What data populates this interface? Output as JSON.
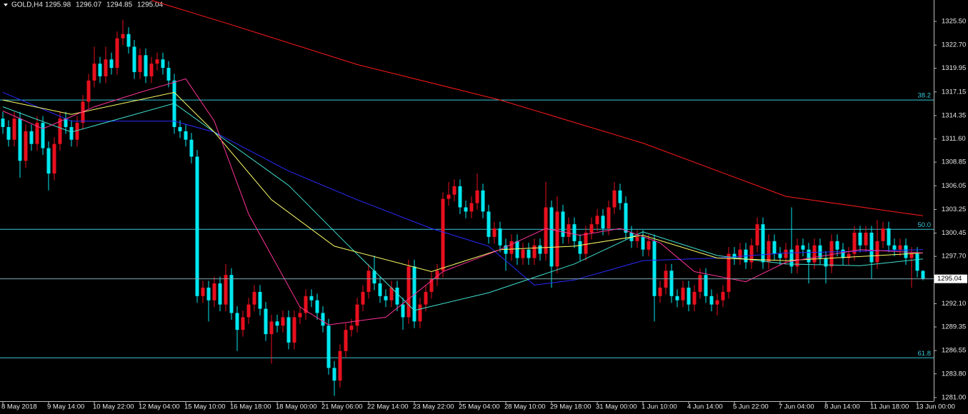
{
  "chart_data": {
    "type": "candlestick",
    "symbol": "GOLD,H4",
    "up_color": "#e8101e",
    "down_color": "#00e8f0",
    "open": [
      1314.0,
      1313.0,
      1311.5,
      1314.0,
      1309.0,
      1312.5,
      1311.0,
      1313.5,
      1310.5,
      1307.5,
      1311.0,
      1314.0,
      1313.0,
      1311.5,
      1313.5,
      1316.0,
      1318.5,
      1320.5,
      1319.0,
      1321.0,
      1320.0,
      1323.5,
      1324.0,
      1322.5,
      1319.5,
      1321.5,
      1319.0,
      1320.5,
      1321.0,
      1320.0,
      1318.5,
      1313.0,
      1312.5,
      1311.5,
      1309.5,
      1293.0,
      1294.0,
      1292.5,
      1294.5,
      1292.0,
      1295.5,
      1291.0,
      1289.0,
      1290.5,
      1292.0,
      1293.5,
      1291.5,
      1288.5,
      1290.0,
      1289.5,
      1290.5,
      1287.5,
      1290.5,
      1291.0,
      1293.0,
      1292.5,
      1291.0,
      1289.5,
      1284.5,
      1283.0,
      1286.5,
      1289.0,
      1289.5,
      1292.0,
      1293.5,
      1296.0,
      1294.5,
      1293.0,
      1292.5,
      1294.0,
      1292.0,
      1290.5,
      1296.5,
      1290.0,
      1292.0,
      1293.5,
      1295.0,
      1296.0,
      1304.5,
      1305.0,
      1306.0,
      1303.5,
      1303.0,
      1304.0,
      1305.5,
      1303.0,
      1300.0,
      1301.0,
      1299.0,
      1298.0,
      1299.5,
      1297.5,
      1298.5,
      1297.5,
      1299.0,
      1298.0,
      1303.5,
      1296.5,
      1303.0,
      1300.0,
      1301.5,
      1299.5,
      1298.0,
      1300.5,
      1301.5,
      1302.5,
      1301.0,
      1303.5,
      1305.5,
      1304.0,
      1300.5,
      1299.5,
      1300.0,
      1298.5,
      1299.5,
      1293.0,
      1294.0,
      1296.0,
      1293.0,
      1292.5,
      1294.0,
      1292.0,
      1293.5,
      1295.5,
      1293.0,
      1292.0,
      1292.5,
      1293.5,
      1298.0,
      1297.5,
      1298.5,
      1297.0,
      1299.0,
      1301.5,
      1297.0,
      1299.5,
      1298.0,
      1297.5,
      1298.5,
      1296.5,
      1299.0,
      1298.5,
      1297.0,
      1299.0,
      1297.5,
      1296.5,
      1299.5,
      1298.5,
      1297.5,
      1298.0,
      1300.5,
      1299.0,
      1300.5,
      1297.0,
      1299.5,
      1301.0,
      1299.0,
      1298.5,
      1299.0,
      1297.5,
      1298.0,
      1295.98
    ],
    "high": [
      1314.8,
      1313.8,
      1314.8,
      1314.8,
      1313.3,
      1313.3,
      1314.3,
      1314.3,
      1311.3,
      1311.8,
      1314.8,
      1314.8,
      1313.8,
      1314.3,
      1316.8,
      1319.3,
      1322.5,
      1321.3,
      1322.5,
      1321.8,
      1324.3,
      1325.7,
      1324.8,
      1323.3,
      1322.3,
      1322.3,
      1321.3,
      1321.8,
      1321.8,
      1320.8,
      1319.3,
      1313.8,
      1313.3,
      1312.3,
      1310.3,
      1294.8,
      1294.8,
      1295.3,
      1295.3,
      1296.8,
      1296.3,
      1291.8,
      1291.3,
      1292.8,
      1294.3,
      1294.3,
      1292.3,
      1290.8,
      1290.8,
      1291.3,
      1291.3,
      1291.3,
      1291.8,
      1293.8,
      1293.8,
      1293.3,
      1291.8,
      1290.3,
      1285.3,
      1287.3,
      1289.8,
      1290.3,
      1292.8,
      1294.3,
      1296.8,
      1297.8,
      1295.3,
      1293.8,
      1294.8,
      1294.8,
      1292.8,
      1297.3,
      1297.3,
      1292.8,
      1294.3,
      1295.8,
      1296.8,
      1305.3,
      1306.5,
      1306.8,
      1306.8,
      1304.3,
      1304.8,
      1307.5,
      1306.3,
      1303.8,
      1301.8,
      1301.8,
      1299.8,
      1300.3,
      1300.3,
      1299.3,
      1299.3,
      1299.8,
      1299.8,
      1306.5,
      1304.3,
      1304.8,
      1303.8,
      1302.3,
      1302.3,
      1300.3,
      1301.3,
      1302.3,
      1303.3,
      1303.3,
      1304.3,
      1306.5,
      1306.3,
      1304.8,
      1301.3,
      1300.8,
      1300.8,
      1300.3,
      1300.3,
      1294.8,
      1296.8,
      1296.8,
      1293.8,
      1294.8,
      1294.8,
      1294.3,
      1296.3,
      1296.3,
      1293.8,
      1293.3,
      1294.3,
      1298.8,
      1298.8,
      1299.3,
      1299.3,
      1299.8,
      1302.3,
      1302.3,
      1300.3,
      1300.3,
      1298.8,
      1299.3,
      1303.5,
      1299.8,
      1299.8,
      1299.3,
      1299.8,
      1299.8,
      1298.3,
      1300.3,
      1300.3,
      1299.3,
      1298.8,
      1301.3,
      1301.3,
      1301.3,
      1301.3,
      1302.0,
      1301.8,
      1301.8,
      1299.8,
      1299.8,
      1299.8,
      1298.8,
      1298.8,
      1296.07
    ],
    "low": [
      1312.2,
      1310.7,
      1310.7,
      1307.0,
      1308.2,
      1310.2,
      1310.2,
      1309.7,
      1305.5,
      1306.7,
      1310.2,
      1312.2,
      1310.7,
      1310.7,
      1312.7,
      1315.2,
      1317.7,
      1318.2,
      1318.2,
      1319.2,
      1319.2,
      1322.7,
      1321.7,
      1318.7,
      1318.7,
      1318.2,
      1318.2,
      1319.7,
      1319.2,
      1317.7,
      1312.2,
      1311.7,
      1310.7,
      1308.7,
      1292.2,
      1292.2,
      1290.0,
      1291.7,
      1291.2,
      1291.2,
      1290.2,
      1286.5,
      1288.2,
      1289.7,
      1291.2,
      1290.7,
      1287.7,
      1285.0,
      1288.7,
      1288.7,
      1286.7,
      1286.7,
      1289.7,
      1290.2,
      1291.7,
      1290.2,
      1288.7,
      1283.7,
      1281.2,
      1282.2,
      1285.7,
      1288.2,
      1288.7,
      1291.2,
      1292.7,
      1293.7,
      1292.2,
      1291.7,
      1291.7,
      1291.2,
      1289.0,
      1289.7,
      1289.2,
      1289.2,
      1291.2,
      1292.7,
      1294.2,
      1295.2,
      1303.7,
      1304.2,
      1302.7,
      1302.2,
      1302.2,
      1303.2,
      1302.2,
      1299.2,
      1299.2,
      1298.2,
      1296.0,
      1297.2,
      1296.7,
      1296.7,
      1296.7,
      1296.7,
      1297.2,
      1297.2,
      1294.0,
      1295.7,
      1299.2,
      1299.2,
      1298.7,
      1297.2,
      1297.2,
      1299.7,
      1300.7,
      1300.2,
      1300.2,
      1302.7,
      1303.2,
      1299.7,
      1298.7,
      1298.7,
      1297.7,
      1297.7,
      1290.0,
      1292.2,
      1293.2,
      1292.2,
      1291.7,
      1291.7,
      1291.2,
      1291.2,
      1292.7,
      1292.2,
      1291.2,
      1290.7,
      1291.7,
      1292.7,
      1296.7,
      1296.7,
      1296.2,
      1296.2,
      1298.2,
      1296.2,
      1296.2,
      1297.2,
      1296.7,
      1296.7,
      1295.7,
      1295.7,
      1297.7,
      1294.5,
      1296.2,
      1296.7,
      1294.5,
      1295.7,
      1297.7,
      1296.7,
      1296.7,
      1297.2,
      1298.2,
      1298.2,
      1295.0,
      1296.2,
      1298.7,
      1298.2,
      1297.7,
      1297.7,
      1296.7,
      1294.0,
      1295.2,
      1294.85
    ],
    "close": [
      1313.0,
      1311.5,
      1314.0,
      1309.0,
      1312.5,
      1311.0,
      1313.5,
      1310.5,
      1307.5,
      1311.0,
      1314.0,
      1313.0,
      1311.5,
      1313.5,
      1316.0,
      1318.5,
      1320.5,
      1319.0,
      1321.0,
      1320.0,
      1323.5,
      1324.0,
      1322.5,
      1319.5,
      1321.5,
      1319.0,
      1320.5,
      1321.0,
      1320.0,
      1318.5,
      1313.0,
      1312.5,
      1311.5,
      1309.5,
      1293.0,
      1294.0,
      1292.5,
      1294.5,
      1292.0,
      1295.5,
      1291.0,
      1289.0,
      1290.5,
      1292.0,
      1293.5,
      1291.5,
      1288.5,
      1290.0,
      1289.5,
      1290.5,
      1287.5,
      1290.5,
      1291.0,
      1293.0,
      1292.5,
      1291.0,
      1289.5,
      1284.5,
      1283.0,
      1286.5,
      1289.0,
      1289.5,
      1292.0,
      1293.5,
      1296.0,
      1294.5,
      1293.0,
      1292.5,
      1294.0,
      1292.0,
      1290.5,
      1296.5,
      1290.0,
      1292.0,
      1293.5,
      1295.0,
      1296.0,
      1304.5,
      1305.0,
      1306.0,
      1303.5,
      1303.0,
      1304.0,
      1305.5,
      1303.0,
      1300.0,
      1301.0,
      1299.0,
      1298.0,
      1299.5,
      1297.5,
      1298.5,
      1297.5,
      1299.0,
      1298.0,
      1303.5,
      1296.5,
      1303.0,
      1300.0,
      1301.5,
      1299.5,
      1298.0,
      1300.5,
      1301.5,
      1302.5,
      1301.0,
      1303.5,
      1305.5,
      1304.0,
      1300.5,
      1299.5,
      1300.0,
      1298.5,
      1299.5,
      1293.0,
      1294.0,
      1296.0,
      1293.0,
      1292.5,
      1294.0,
      1292.0,
      1293.5,
      1295.5,
      1293.0,
      1292.0,
      1292.5,
      1293.5,
      1298.0,
      1297.5,
      1298.5,
      1297.0,
      1299.0,
      1301.5,
      1297.0,
      1299.5,
      1298.0,
      1297.5,
      1298.5,
      1296.5,
      1299.0,
      1298.5,
      1297.0,
      1299.0,
      1297.5,
      1296.5,
      1299.5,
      1298.5,
      1297.5,
      1298.0,
      1300.5,
      1299.0,
      1300.5,
      1297.0,
      1299.5,
      1301.0,
      1299.0,
      1298.5,
      1299.0,
      1297.5,
      1298.0,
      1296.0,
      1295.04
    ],
    "series": [
      {
        "color": "#ff1a1a",
        "x": [
          26,
          40,
          62,
          87,
          112,
          137,
          161
        ],
        "values": [
          1328.0,
          1325.1,
          1320.4,
          1316.2,
          1311.1,
          1304.8,
          1302.5
        ]
      },
      {
        "color": "#2a2aff",
        "x": [
          0,
          12,
          30,
          37,
          50,
          62,
          75,
          85,
          93,
          100,
          112,
          125,
          137,
          161
        ],
        "values": [
          1317.1,
          1313.7,
          1313.7,
          1312.4,
          1307.8,
          1304.4,
          1301.0,
          1298.9,
          1294.3,
          1294.9,
          1297.2,
          1297.5,
          1298.1,
          1298.5
        ]
      },
      {
        "color": "#40e0d0",
        "x": [
          0,
          12,
          30,
          37,
          50,
          60,
          72,
          85,
          100,
          112,
          125,
          137,
          150,
          161
        ],
        "values": [
          1315.4,
          1312.4,
          1315.8,
          1312.4,
          1306.1,
          1299.3,
          1291.3,
          1293.4,
          1296.8,
          1300.6,
          1297.8,
          1296.8,
          1296.6,
          1297.4
        ]
      },
      {
        "color": "#ffff66",
        "x": [
          0,
          12,
          30,
          37,
          47,
          58,
          75,
          87,
          100,
          112,
          125,
          137,
          161
        ],
        "values": [
          1316.2,
          1314.5,
          1317.1,
          1312.4,
          1304.4,
          1298.9,
          1295.9,
          1298.5,
          1298.9,
          1300.2,
          1297.5,
          1297.2,
          1298.1
        ]
      },
      {
        "color": "#ff3399",
        "x": [
          0,
          7,
          16,
          24,
          32,
          37,
          43,
          52,
          57,
          67,
          77,
          87,
          95,
          101,
          108,
          115,
          121,
          130,
          137,
          150,
          161
        ],
        "values": [
          1314.9,
          1312.8,
          1315.4,
          1317.1,
          1318.7,
          1313.7,
          1302.7,
          1291.7,
          1289.6,
          1290.5,
          1295.9,
          1298.5,
          1301.0,
          1300.2,
          1301.0,
          1299.3,
          1295.9,
          1294.7,
          1297.0,
          1298.5,
          1298.1
        ]
      }
    ],
    "levels": [
      {
        "label": "38.2",
        "value": 1316.2
      },
      {
        "label": "50.0",
        "value": 1300.9
      },
      {
        "label": "61.8",
        "value": 1285.7
      }
    ],
    "ylim": [
      1280.57,
      1328.03
    ],
    "yticks": [
      {
        "value": 1325.5,
        "label": "1325.50"
      },
      {
        "value": 1322.7,
        "label": "1322.70"
      },
      {
        "value": 1319.95,
        "label": "1319.95"
      },
      {
        "value": 1317.15,
        "label": "1317.15"
      },
      {
        "value": 1314.35,
        "label": "1314.35"
      },
      {
        "value": 1311.6,
        "label": "1311.60"
      },
      {
        "value": 1308.85,
        "label": "1308.85"
      },
      {
        "value": 1306.05,
        "label": "1306.05"
      },
      {
        "value": 1303.25,
        "label": "1303.25"
      },
      {
        "value": 1300.45,
        "label": "1300.45"
      },
      {
        "value": 1297.7,
        "label": "1297.70"
      },
      {
        "value": 1292.1,
        "label": "1292.10"
      },
      {
        "value": 1289.35,
        "label": "1289.35"
      },
      {
        "value": 1286.55,
        "label": "1286.55"
      },
      {
        "value": 1283.8,
        "label": "1283.80"
      },
      {
        "value": 1281.0,
        "label": "1281.00"
      }
    ],
    "xticks": [
      {
        "value": 0,
        "label": "8 May 2018"
      },
      {
        "value": 8,
        "label": "9 May 14:00"
      },
      {
        "value": 16,
        "label": "10 May 22:00"
      },
      {
        "value": 24,
        "label": "12 May 04:00"
      },
      {
        "value": 32,
        "label": "15 May 10:00"
      },
      {
        "value": 40,
        "label": "16 May 18:00"
      },
      {
        "value": 48,
        "label": "18 May 00:00"
      },
      {
        "value": 56,
        "label": "21 May 06:00"
      },
      {
        "value": 64,
        "label": "22 May 14:00"
      },
      {
        "value": 72,
        "label": "23 May 22:00"
      },
      {
        "value": 80,
        "label": "25 May 04:00"
      },
      {
        "value": 88,
        "label": "28 May 10:00"
      },
      {
        "value": 96,
        "label": "29 May 18:00"
      },
      {
        "value": 104,
        "label": "31 May 00:00"
      },
      {
        "value": 112,
        "label": "1 Jun 10:00"
      },
      {
        "value": 120,
        "label": "4 Jun 14:00"
      },
      {
        "value": 128,
        "label": "5 Jun 22:00"
      },
      {
        "value": 136,
        "label": "7 Jun 04:00"
      },
      {
        "value": 144,
        "label": "8 Jun 14:00"
      },
      {
        "value": 152,
        "label": "11 Jun 18:00"
      },
      {
        "value": 160,
        "label": "13 Jun 00:00"
      }
    ]
  }
}
